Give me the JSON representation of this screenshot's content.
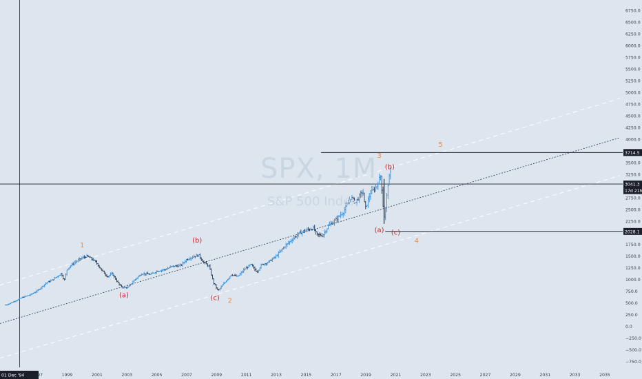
{
  "watermark": {
    "symbol": "SPX, 1M",
    "name": "S&P 500 Index"
  },
  "crosshair": {
    "date_label": "01 Dec '94",
    "price": 3041.3
  },
  "colors": {
    "background": "#dde6ef",
    "bar_up": "#3a8fd6",
    "bar_down": "#2a3a55",
    "wave_orange": "#f08a3c",
    "wave_red": "#c62828",
    "channel_dashed_white": "#ffffff",
    "channel_dotted": "#3a4558",
    "axis_text": "#3a3f4a",
    "label_bg_dark": "#1b1f2a"
  },
  "chart_data": {
    "type": "candlestick",
    "x_axis": {
      "range": [
        1994.5,
        2036.2
      ],
      "tick_labels": [
        "1997",
        "1999",
        "2001",
        "2003",
        "2005",
        "2007",
        "2009",
        "2011",
        "2013",
        "2015",
        "2017",
        "2019",
        "2021",
        "2023",
        "2025",
        "2027",
        "2029",
        "2031",
        "2033",
        "2035"
      ]
    },
    "y_axis": {
      "range": [
        -875,
        6900
      ],
      "tick_labels": [
        "6750.0",
        "6500.0",
        "6250.0",
        "6000.0",
        "5750.0",
        "5500.0",
        "5250.0",
        "5000.0",
        "4750.0",
        "4500.0",
        "4250.0",
        "4000.0",
        "3750.0",
        "3500.0",
        "3250.0",
        "3000.0",
        "2750.0",
        "2500.0",
        "2250.0",
        "2000.0",
        "1750.0",
        "1500.0",
        "1250.0",
        "1000.0",
        "750.0",
        "500.0",
        "250.0",
        "0.0",
        "−250.0",
        "−500.0",
        "−750.0"
      ]
    },
    "price_path": [
      [
        1994.9,
        455
      ],
      [
        1995.5,
        540
      ],
      [
        1996.0,
        620
      ],
      [
        1996.5,
        670
      ],
      [
        1997.0,
        760
      ],
      [
        1997.6,
        930
      ],
      [
        1998.0,
        990
      ],
      [
        1998.6,
        1130
      ],
      [
        1998.8,
        980
      ],
      [
        1999.0,
        1230
      ],
      [
        1999.5,
        1370
      ],
      [
        2000.0,
        1460
      ],
      [
        2000.3,
        1500
      ],
      [
        2000.7,
        1430
      ],
      [
        2001.0,
        1340
      ],
      [
        2001.3,
        1200
      ],
      [
        2001.7,
        1060
      ],
      [
        2002.0,
        1130
      ],
      [
        2002.5,
        880
      ],
      [
        2002.8,
        820
      ],
      [
        2003.1,
        840
      ],
      [
        2003.5,
        990
      ],
      [
        2004.0,
        1130
      ],
      [
        2004.6,
        1110
      ],
      [
        2005.0,
        1180
      ],
      [
        2005.6,
        1220
      ],
      [
        2006.0,
        1280
      ],
      [
        2006.6,
        1300
      ],
      [
        2007.0,
        1430
      ],
      [
        2007.5,
        1500
      ],
      [
        2007.8,
        1520
      ],
      [
        2008.1,
        1380
      ],
      [
        2008.5,
        1280
      ],
      [
        2008.8,
        930
      ],
      [
        2009.1,
        760
      ],
      [
        2009.5,
        920
      ],
      [
        2010.0,
        1110
      ],
      [
        2010.4,
        1060
      ],
      [
        2010.9,
        1230
      ],
      [
        2011.3,
        1320
      ],
      [
        2011.7,
        1160
      ],
      [
        2012.0,
        1310
      ],
      [
        2012.5,
        1380
      ],
      [
        2013.0,
        1500
      ],
      [
        2013.5,
        1690
      ],
      [
        2014.0,
        1840
      ],
      [
        2014.5,
        1980
      ],
      [
        2015.0,
        2060
      ],
      [
        2015.5,
        2100
      ],
      [
        2015.7,
        1960
      ],
      [
        2016.1,
        1940
      ],
      [
        2016.5,
        2150
      ],
      [
        2017.0,
        2280
      ],
      [
        2017.5,
        2450
      ],
      [
        2018.0,
        2760
      ],
      [
        2018.3,
        2640
      ],
      [
        2018.8,
        2900
      ],
      [
        2018.95,
        2500
      ],
      [
        2019.3,
        2850
      ],
      [
        2019.7,
        2980
      ],
      [
        2020.0,
        3230
      ],
      [
        2020.15,
        2580
      ],
      [
        2020.25,
        2300
      ],
      [
        2020.5,
        3100
      ],
      [
        2020.65,
        3270
      ]
    ],
    "channels": [
      {
        "style": "dashed-white",
        "points": [
          [
            1994.5,
            880
          ],
          [
            2036.0,
            4870
          ]
        ]
      },
      {
        "style": "dotted-dark",
        "points": [
          [
            1994.5,
            60
          ],
          [
            2036.0,
            4030
          ]
        ]
      },
      {
        "style": "dashed-white",
        "points": [
          [
            1994.5,
            -680
          ],
          [
            2036.0,
            3220
          ]
        ]
      }
    ],
    "horizontal_levels": [
      {
        "value": 3714.5,
        "label": "3714.5",
        "from_x": 2016.0
      },
      {
        "value": 2028.1,
        "label": "2028.1",
        "from_x": 2020.3
      }
    ],
    "extra_axis_labels": [
      {
        "value": 3041.3,
        "label": "3041.3",
        "dark": true
      },
      {
        "value": 2900,
        "label": "17d 21h",
        "dark": true
      }
    ],
    "wave_labels": [
      {
        "text": "1",
        "x": 2000.0,
        "y": 1690,
        "color": "orange"
      },
      {
        "text": "(a)",
        "x": 2002.8,
        "y": 620,
        "color": "red"
      },
      {
        "text": "(b)",
        "x": 2007.7,
        "y": 1790,
        "color": "red"
      },
      {
        "text": "(c)",
        "x": 2008.9,
        "y": 560,
        "color": "red"
      },
      {
        "text": "2",
        "x": 2009.9,
        "y": 500,
        "color": "orange"
      },
      {
        "text": "3",
        "x": 2019.9,
        "y": 3600,
        "color": "orange"
      },
      {
        "text": "(b)",
        "x": 2020.6,
        "y": 3360,
        "color": "red"
      },
      {
        "text": "(a)",
        "x": 2019.9,
        "y": 2010,
        "color": "red"
      },
      {
        "text": "(c)",
        "x": 2021.0,
        "y": 1960,
        "color": "red"
      },
      {
        "text": "4",
        "x": 2022.4,
        "y": 1780,
        "color": "orange"
      },
      {
        "text": "5",
        "x": 2024.0,
        "y": 3840,
        "color": "orange"
      }
    ]
  }
}
